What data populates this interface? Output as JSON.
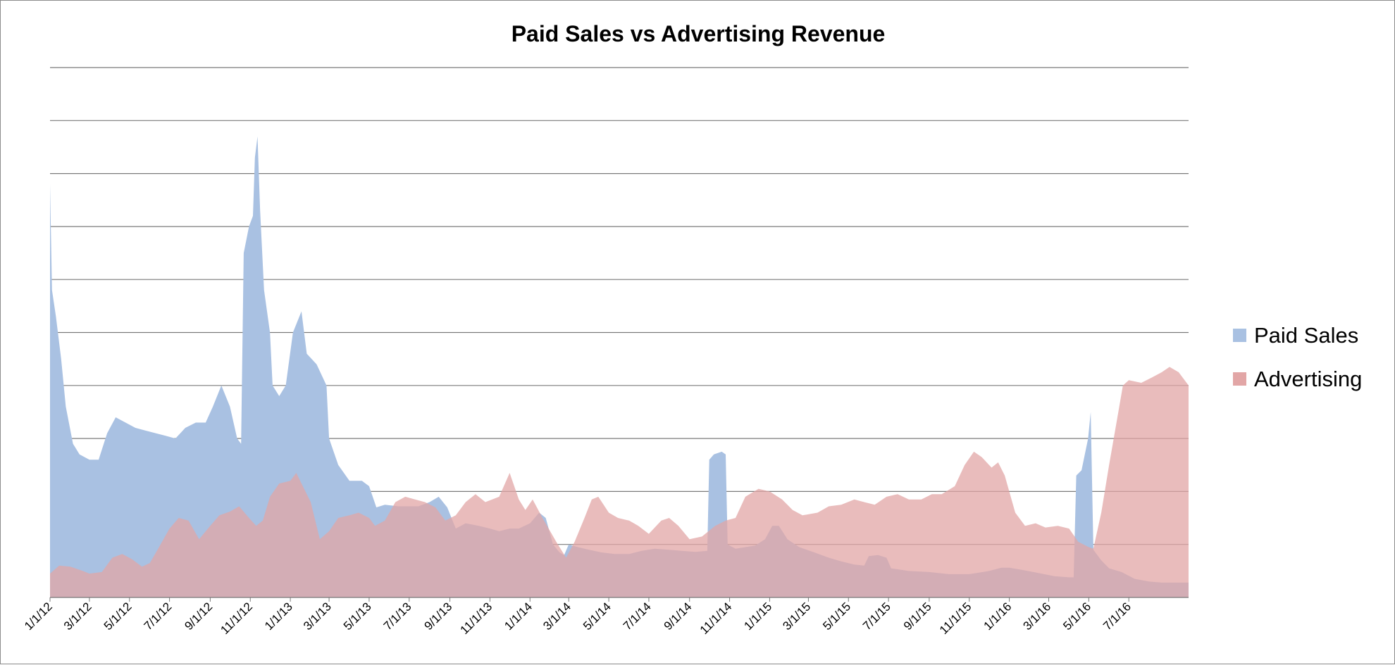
{
  "chart_data": {
    "type": "area",
    "title": "Paid Sales vs Advertising Revenue",
    "xlabel": "",
    "ylabel": "",
    "x_start": "2012-01-01",
    "x_end": "2016-09-30",
    "xlim": [
      "2012-01-01",
      "2016-09-30"
    ],
    "ylim": [
      0,
      10
    ],
    "grid": true,
    "y_tick_labels_shown": false,
    "legend_position": "right",
    "x_tick_labels": [
      "1/1/12",
      "3/1/12",
      "5/1/12",
      "7/1/12",
      "9/1/12",
      "11/1/12",
      "1/1/13",
      "3/1/13",
      "5/1/13",
      "7/1/13",
      "9/1/13",
      "11/1/13",
      "1/1/14",
      "3/1/14",
      "5/1/14",
      "7/1/14",
      "9/1/14",
      "11/1/14",
      "1/1/15",
      "3/1/15",
      "5/1/15",
      "7/1/15",
      "9/1/15",
      "11/1/15",
      "1/1/16",
      "3/1/16",
      "5/1/16",
      "7/1/16"
    ],
    "series": [
      {
        "name": "Paid Sales",
        "color": "#a9c1e2",
        "points": [
          [
            "2012-01-01",
            7.8
          ],
          [
            "2012-01-04",
            5.8
          ],
          [
            "2012-01-10",
            5.3
          ],
          [
            "2012-01-18",
            4.5
          ],
          [
            "2012-01-25",
            3.6
          ],
          [
            "2012-02-05",
            2.9
          ],
          [
            "2012-02-15",
            2.7
          ],
          [
            "2012-03-01",
            2.6
          ],
          [
            "2012-03-15",
            2.6
          ],
          [
            "2012-03-28",
            3.1
          ],
          [
            "2012-04-10",
            3.4
          ],
          [
            "2012-04-25",
            3.3
          ],
          [
            "2012-05-10",
            3.2
          ],
          [
            "2012-05-25",
            3.15
          ],
          [
            "2012-06-10",
            3.1
          ],
          [
            "2012-06-25",
            3.05
          ],
          [
            "2012-07-10",
            3.0
          ],
          [
            "2012-07-25",
            3.2
          ],
          [
            "2012-08-10",
            3.3
          ],
          [
            "2012-08-25",
            3.3
          ],
          [
            "2012-09-05",
            3.6
          ],
          [
            "2012-09-18",
            4.0
          ],
          [
            "2012-10-01",
            3.6
          ],
          [
            "2012-10-12",
            3.0
          ],
          [
            "2012-10-18",
            2.9
          ],
          [
            "2012-10-22",
            6.5
          ],
          [
            "2012-10-30",
            7.0
          ],
          [
            "2012-11-05",
            7.2
          ],
          [
            "2012-11-08",
            8.3
          ],
          [
            "2012-11-12",
            8.7
          ],
          [
            "2012-11-16",
            7.3
          ],
          [
            "2012-11-22",
            5.8
          ],
          [
            "2012-12-01",
            5.0
          ],
          [
            "2012-12-05",
            4.0
          ],
          [
            "2012-12-15",
            3.8
          ],
          [
            "2012-12-25",
            4.0
          ],
          [
            "2013-01-05",
            5.0
          ],
          [
            "2013-01-18",
            5.4
          ],
          [
            "2013-01-26",
            4.6
          ],
          [
            "2013-02-10",
            4.4
          ],
          [
            "2013-02-25",
            4.0
          ],
          [
            "2013-03-01",
            3.0
          ],
          [
            "2013-03-15",
            2.5
          ],
          [
            "2013-04-01",
            2.2
          ],
          [
            "2013-04-20",
            2.2
          ],
          [
            "2013-05-01",
            2.1
          ],
          [
            "2013-05-12",
            1.7
          ],
          [
            "2013-05-25",
            1.75
          ],
          [
            "2013-06-15",
            1.72
          ],
          [
            "2013-07-15",
            1.72
          ],
          [
            "2013-08-01",
            1.8
          ],
          [
            "2013-08-15",
            1.9
          ],
          [
            "2013-08-28",
            1.7
          ],
          [
            "2013-09-10",
            1.3
          ],
          [
            "2013-09-25",
            1.4
          ],
          [
            "2013-10-15",
            1.35
          ],
          [
            "2013-11-01",
            1.3
          ],
          [
            "2013-11-15",
            1.25
          ],
          [
            "2013-12-01",
            1.3
          ],
          [
            "2013-12-15",
            1.3
          ],
          [
            "2014-01-01",
            1.4
          ],
          [
            "2014-01-15",
            1.6
          ],
          [
            "2014-01-25",
            1.5
          ],
          [
            "2014-02-05",
            1.0
          ],
          [
            "2014-02-15",
            0.85
          ],
          [
            "2014-02-22",
            0.8
          ],
          [
            "2014-03-01",
            1.0
          ],
          [
            "2014-03-15",
            0.95
          ],
          [
            "2014-04-01",
            0.9
          ],
          [
            "2014-04-20",
            0.85
          ],
          [
            "2014-05-10",
            0.82
          ],
          [
            "2014-06-01",
            0.82
          ],
          [
            "2014-06-20",
            0.88
          ],
          [
            "2014-07-10",
            0.92
          ],
          [
            "2014-08-01",
            0.9
          ],
          [
            "2014-08-20",
            0.88
          ],
          [
            "2014-09-10",
            0.86
          ],
          [
            "2014-09-28",
            0.88
          ],
          [
            "2014-10-01",
            2.6
          ],
          [
            "2014-10-08",
            2.7
          ],
          [
            "2014-10-20",
            2.75
          ],
          [
            "2014-10-26",
            2.7
          ],
          [
            "2014-10-29",
            1.0
          ],
          [
            "2014-11-10",
            0.92
          ],
          [
            "2014-11-25",
            0.95
          ],
          [
            "2014-12-10",
            0.98
          ],
          [
            "2014-12-25",
            1.1
          ],
          [
            "2015-01-05",
            1.35
          ],
          [
            "2015-01-15",
            1.35
          ],
          [
            "2015-01-28",
            1.1
          ],
          [
            "2015-02-15",
            0.95
          ],
          [
            "2015-03-10",
            0.85
          ],
          [
            "2015-04-01",
            0.75
          ],
          [
            "2015-04-20",
            0.68
          ],
          [
            "2015-05-10",
            0.62
          ],
          [
            "2015-05-25",
            0.6
          ],
          [
            "2015-06-01",
            0.78
          ],
          [
            "2015-06-15",
            0.8
          ],
          [
            "2015-06-28",
            0.75
          ],
          [
            "2015-07-05",
            0.55
          ],
          [
            "2015-08-01",
            0.5
          ],
          [
            "2015-09-01",
            0.48
          ],
          [
            "2015-10-01",
            0.44
          ],
          [
            "2015-11-01",
            0.44
          ],
          [
            "2015-12-01",
            0.5
          ],
          [
            "2015-12-20",
            0.56
          ],
          [
            "2016-01-01",
            0.56
          ],
          [
            "2016-01-20",
            0.52
          ],
          [
            "2016-02-15",
            0.46
          ],
          [
            "2016-03-10",
            0.4
          ],
          [
            "2016-04-01",
            0.38
          ],
          [
            "2016-04-08",
            0.38
          ],
          [
            "2016-04-12",
            2.3
          ],
          [
            "2016-04-20",
            2.4
          ],
          [
            "2016-04-30",
            3.0
          ],
          [
            "2016-05-04",
            3.5
          ],
          [
            "2016-05-08",
            0.9
          ],
          [
            "2016-05-20",
            0.7
          ],
          [
            "2016-06-01",
            0.55
          ],
          [
            "2016-06-20",
            0.48
          ],
          [
            "2016-07-10",
            0.35
          ],
          [
            "2016-08-01",
            0.3
          ],
          [
            "2016-08-20",
            0.28
          ],
          [
            "2016-09-30",
            0.28
          ]
        ]
      },
      {
        "name": "Advertising",
        "color": "#e2a6a6",
        "points": [
          [
            "2012-01-01",
            0.45
          ],
          [
            "2012-01-15",
            0.6
          ],
          [
            "2012-02-01",
            0.58
          ],
          [
            "2012-02-20",
            0.5
          ],
          [
            "2012-03-01",
            0.45
          ],
          [
            "2012-03-20",
            0.48
          ],
          [
            "2012-04-05",
            0.75
          ],
          [
            "2012-04-20",
            0.82
          ],
          [
            "2012-05-05",
            0.72
          ],
          [
            "2012-05-20",
            0.58
          ],
          [
            "2012-06-01",
            0.65
          ],
          [
            "2012-06-15",
            0.95
          ],
          [
            "2012-07-01",
            1.3
          ],
          [
            "2012-07-15",
            1.5
          ],
          [
            "2012-07-30",
            1.45
          ],
          [
            "2012-08-15",
            1.1
          ],
          [
            "2012-09-01",
            1.35
          ],
          [
            "2012-09-15",
            1.55
          ],
          [
            "2012-10-01",
            1.62
          ],
          [
            "2012-10-15",
            1.72
          ],
          [
            "2012-10-30",
            1.5
          ],
          [
            "2012-11-10",
            1.35
          ],
          [
            "2012-11-20",
            1.45
          ],
          [
            "2012-12-01",
            1.9
          ],
          [
            "2012-12-15",
            2.15
          ],
          [
            "2013-01-01",
            2.2
          ],
          [
            "2013-01-10",
            2.35
          ],
          [
            "2013-01-20",
            2.1
          ],
          [
            "2013-02-01",
            1.8
          ],
          [
            "2013-02-15",
            1.1
          ],
          [
            "2013-03-01",
            1.25
          ],
          [
            "2013-03-15",
            1.5
          ],
          [
            "2013-04-01",
            1.55
          ],
          [
            "2013-04-15",
            1.6
          ],
          [
            "2013-05-01",
            1.5
          ],
          [
            "2013-05-10",
            1.35
          ],
          [
            "2013-05-25",
            1.45
          ],
          [
            "2013-06-10",
            1.8
          ],
          [
            "2013-06-25",
            1.9
          ],
          [
            "2013-07-10",
            1.85
          ],
          [
            "2013-07-25",
            1.8
          ],
          [
            "2013-08-10",
            1.7
          ],
          [
            "2013-08-25",
            1.45
          ],
          [
            "2013-09-10",
            1.55
          ],
          [
            "2013-09-25",
            1.8
          ],
          [
            "2013-10-10",
            1.95
          ],
          [
            "2013-10-25",
            1.8
          ],
          [
            "2013-11-15",
            1.9
          ],
          [
            "2013-12-01",
            2.35
          ],
          [
            "2013-12-15",
            1.85
          ],
          [
            "2013-12-25",
            1.65
          ],
          [
            "2014-01-05",
            1.85
          ],
          [
            "2014-01-20",
            1.5
          ],
          [
            "2014-02-10",
            1.05
          ],
          [
            "2014-02-25",
            0.75
          ],
          [
            "2014-03-10",
            1.05
          ],
          [
            "2014-03-25",
            1.5
          ],
          [
            "2014-04-05",
            1.85
          ],
          [
            "2014-04-15",
            1.9
          ],
          [
            "2014-05-01",
            1.6
          ],
          [
            "2014-05-15",
            1.5
          ],
          [
            "2014-06-01",
            1.45
          ],
          [
            "2014-06-15",
            1.35
          ],
          [
            "2014-07-01",
            1.2
          ],
          [
            "2014-07-20",
            1.45
          ],
          [
            "2014-08-01",
            1.5
          ],
          [
            "2014-08-15",
            1.35
          ],
          [
            "2014-09-01",
            1.1
          ],
          [
            "2014-09-20",
            1.15
          ],
          [
            "2014-10-10",
            1.35
          ],
          [
            "2014-10-26",
            1.45
          ],
          [
            "2014-11-10",
            1.5
          ],
          [
            "2014-11-25",
            1.9
          ],
          [
            "2014-12-15",
            2.05
          ],
          [
            "2015-01-01",
            2.0
          ],
          [
            "2015-01-20",
            1.85
          ],
          [
            "2015-02-05",
            1.65
          ],
          [
            "2015-02-20",
            1.55
          ],
          [
            "2015-03-15",
            1.6
          ],
          [
            "2015-04-01",
            1.72
          ],
          [
            "2015-04-20",
            1.75
          ],
          [
            "2015-05-10",
            1.85
          ],
          [
            "2015-05-25",
            1.8
          ],
          [
            "2015-06-10",
            1.75
          ],
          [
            "2015-06-28",
            1.9
          ],
          [
            "2015-07-15",
            1.95
          ],
          [
            "2015-08-01",
            1.85
          ],
          [
            "2015-08-20",
            1.85
          ],
          [
            "2015-09-05",
            1.95
          ],
          [
            "2015-09-20",
            1.95
          ],
          [
            "2015-10-10",
            2.1
          ],
          [
            "2015-10-25",
            2.5
          ],
          [
            "2015-11-08",
            2.75
          ],
          [
            "2015-11-20",
            2.65
          ],
          [
            "2015-12-05",
            2.45
          ],
          [
            "2015-12-15",
            2.55
          ],
          [
            "2015-12-25",
            2.3
          ],
          [
            "2016-01-10",
            1.6
          ],
          [
            "2016-01-25",
            1.35
          ],
          [
            "2016-02-10",
            1.4
          ],
          [
            "2016-02-25",
            1.32
          ],
          [
            "2016-03-15",
            1.35
          ],
          [
            "2016-04-01",
            1.3
          ],
          [
            "2016-04-15",
            1.05
          ],
          [
            "2016-05-01",
            0.95
          ],
          [
            "2016-05-08",
            0.92
          ],
          [
            "2016-05-20",
            1.6
          ],
          [
            "2016-06-01",
            2.5
          ],
          [
            "2016-06-15",
            3.5
          ],
          [
            "2016-06-22",
            4.0
          ],
          [
            "2016-07-01",
            4.1
          ],
          [
            "2016-07-20",
            4.05
          ],
          [
            "2016-08-05",
            4.15
          ],
          [
            "2016-08-20",
            4.25
          ],
          [
            "2016-09-01",
            4.35
          ],
          [
            "2016-09-15",
            4.25
          ],
          [
            "2016-09-30",
            4.0
          ]
        ]
      }
    ]
  }
}
